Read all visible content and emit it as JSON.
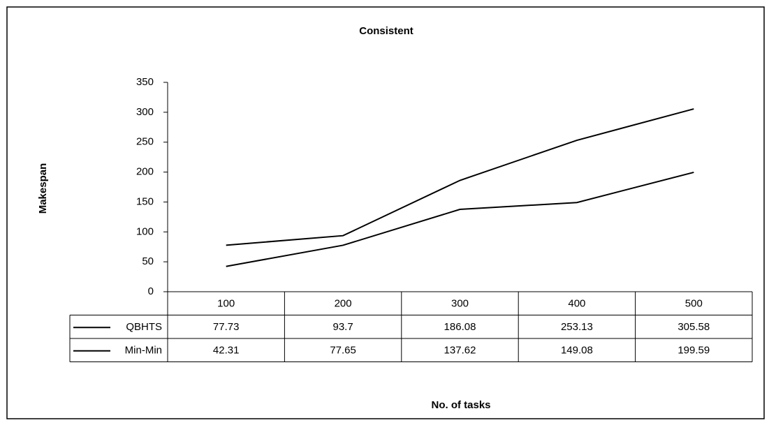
{
  "chart_data": {
    "type": "line",
    "title": "Consistent",
    "x_label": "No. of tasks",
    "y_label": "Makespan",
    "categories": [
      "100",
      "200",
      "300",
      "400",
      "500"
    ],
    "series": [
      {
        "name": "QBHTS",
        "color": "#000000",
        "values": [
          77.73,
          93.7,
          186.08,
          253.13,
          305.58
        ]
      },
      {
        "name": "Min-Min",
        "color": "#000000",
        "values": [
          42.31,
          77.65,
          137.62,
          149.08,
          199.59
        ]
      }
    ],
    "ylim": [
      0,
      350
    ],
    "yticks": [
      0,
      50,
      100,
      150,
      200,
      250,
      300,
      350
    ],
    "grid": false,
    "data_table": true
  }
}
